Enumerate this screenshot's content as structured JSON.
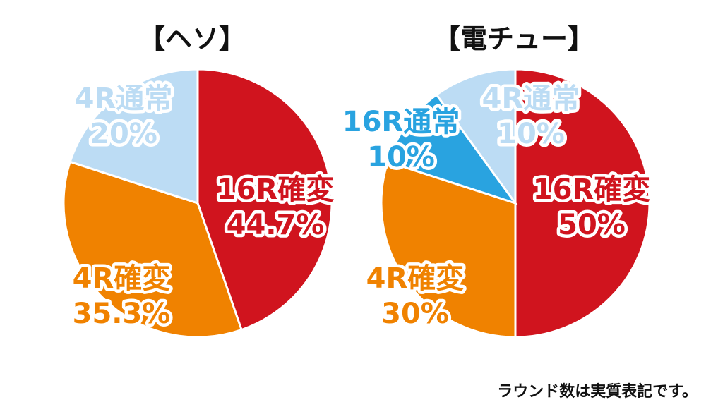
{
  "note": "ラウンド数は実質表記です。",
  "chart_data": [
    {
      "type": "pie",
      "title": "【ヘソ】",
      "slices": [
        {
          "label": "16R確変",
          "value": 44.7,
          "value_text": "44.7%",
          "color": "#d0141e"
        },
        {
          "label": "4R確変",
          "value": 35.3,
          "value_text": "35.3%",
          "color": "#f08200"
        },
        {
          "label": "4R通常",
          "value": 20,
          "value_text": "20%",
          "color": "#bcdcf4"
        }
      ]
    },
    {
      "type": "pie",
      "title": "【電チュー】",
      "slices": [
        {
          "label": "16R確変",
          "value": 50,
          "value_text": "50%",
          "color": "#d0141e"
        },
        {
          "label": "4R確変",
          "value": 30,
          "value_text": "30%",
          "color": "#f08200"
        },
        {
          "label": "16R通常",
          "value": 10,
          "value_text": "10%",
          "color": "#29a3e0"
        },
        {
          "label": "4R通常",
          "value": 10,
          "value_text": "10%",
          "color": "#bcdcf4"
        }
      ]
    }
  ]
}
